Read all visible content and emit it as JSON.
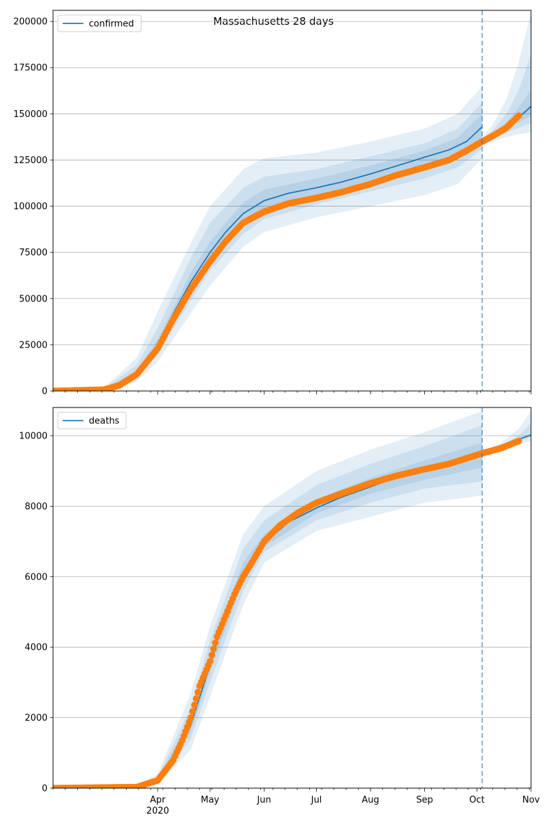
{
  "figure": {
    "title": "Massachusetts 28 days"
  },
  "chart_data": [
    {
      "type": "line",
      "panel": "top",
      "title": "Massachusetts 28 days",
      "legend": {
        "placement": "top-left",
        "label": "confirmed"
      },
      "ylim": [
        0,
        206000
      ],
      "yticks": [
        0,
        25000,
        50000,
        75000,
        100000,
        125000,
        150000,
        175000,
        200000
      ],
      "grid": "y",
      "vline_date": "2020-10-04",
      "series": [
        {
          "name": "confirmed",
          "kind": "model-line",
          "color": "#1f77b4",
          "x": [
            "2020-02-01",
            "2020-03-01",
            "2020-03-10",
            "2020-03-20",
            "2020-04-01",
            "2020-04-10",
            "2020-04-20",
            "2020-05-01",
            "2020-05-10",
            "2020-05-20",
            "2020-06-01",
            "2020-06-15",
            "2020-07-01",
            "2020-07-15",
            "2020-08-01",
            "2020-08-15",
            "2020-09-01",
            "2020-09-15",
            "2020-09-25",
            "2020-10-04"
          ],
          "y": [
            0,
            800,
            3500,
            9500,
            25000,
            42000,
            59000,
            75000,
            86000,
            96000,
            103000,
            107000,
            110000,
            113000,
            117500,
            121500,
            126500,
            130500,
            135000,
            143000
          ]
        },
        {
          "name": "forecast",
          "kind": "forecast-line",
          "color": "#1f77b4",
          "x": [
            "2020-10-04",
            "2020-10-10",
            "2020-10-18",
            "2020-10-25",
            "2020-11-01"
          ],
          "y": [
            135000,
            138500,
            142500,
            148000,
            154000
          ]
        },
        {
          "name": "observed",
          "kind": "points",
          "color": "#ff7f0e",
          "x": [
            "2020-02-01",
            "2020-03-01",
            "2020-03-10",
            "2020-03-20",
            "2020-04-01",
            "2020-04-10",
            "2020-04-20",
            "2020-05-01",
            "2020-05-10",
            "2020-05-20",
            "2020-06-01",
            "2020-06-15",
            "2020-07-01",
            "2020-07-15",
            "2020-08-01",
            "2020-08-15",
            "2020-09-01",
            "2020-09-15",
            "2020-09-25",
            "2020-10-04",
            "2020-10-10",
            "2020-10-18",
            "2020-10-25"
          ],
          "y": [
            0,
            700,
            3000,
            9000,
            23000,
            39000,
            55000,
            70000,
            81000,
            91000,
            97000,
            101500,
            104500,
            107500,
            112000,
            116500,
            121000,
            125000,
            130000,
            135000,
            138000,
            142500,
            149000
          ]
        }
      ],
      "bands": [
        {
          "opacity": 0.12,
          "x": [
            "2020-03-01",
            "2020-03-20",
            "2020-04-01",
            "2020-04-20",
            "2020-05-01",
            "2020-05-20",
            "2020-06-01",
            "2020-07-01",
            "2020-08-01",
            "2020-09-01",
            "2020-09-20",
            "2020-10-04"
          ],
          "lower": [
            300,
            5000,
            16000,
            42000,
            57000,
            78000,
            86000,
            94000,
            100000,
            106000,
            112000,
            126000
          ],
          "upper": [
            1500,
            18000,
            43000,
            80000,
            100000,
            120000,
            126000,
            129000,
            135000,
            142000,
            150000,
            165000
          ]
        },
        {
          "opacity": 0.12,
          "x": [
            "2020-03-01",
            "2020-03-20",
            "2020-04-01",
            "2020-04-20",
            "2020-05-01",
            "2020-05-20",
            "2020-06-01",
            "2020-07-01",
            "2020-08-01",
            "2020-09-01",
            "2020-09-20",
            "2020-10-04"
          ],
          "lower": [
            500,
            7000,
            20000,
            49000,
            65000,
            85000,
            93000,
            101000,
            108000,
            115000,
            121000,
            131000
          ],
          "upper": [
            1200,
            14000,
            34000,
            72000,
            91000,
            110000,
            116000,
            120000,
            127000,
            134000,
            142000,
            156000
          ]
        },
        {
          "opacity": 0.12,
          "x": [
            "2020-03-01",
            "2020-03-20",
            "2020-04-01",
            "2020-04-20",
            "2020-05-01",
            "2020-05-20",
            "2020-06-01",
            "2020-07-01",
            "2020-08-01",
            "2020-09-01",
            "2020-09-20",
            "2020-10-04"
          ],
          "lower": [
            650,
            8500,
            22500,
            54000,
            70000,
            90000,
            98000,
            106000,
            113000,
            120000,
            127000,
            137000
          ],
          "upper": [
            950,
            11000,
            28000,
            64000,
            81000,
            102000,
            109000,
            115000,
            122000,
            130000,
            137000,
            150000
          ]
        },
        {
          "opacity": 0.12,
          "x": [
            "2020-10-04",
            "2020-10-10",
            "2020-10-18",
            "2020-10-25",
            "2020-11-01"
          ],
          "lower": [
            133000,
            135000,
            137500,
            139000,
            140000
          ],
          "upper": [
            137000,
            144000,
            158000,
            178000,
            205000
          ]
        },
        {
          "opacity": 0.12,
          "x": [
            "2020-10-04",
            "2020-10-10",
            "2020-10-18",
            "2020-10-25",
            "2020-11-01"
          ],
          "lower": [
            134000,
            136500,
            140000,
            142500,
            145000
          ],
          "upper": [
            136000,
            141000,
            150000,
            163000,
            182000
          ]
        },
        {
          "opacity": 0.12,
          "x": [
            "2020-10-04",
            "2020-10-10",
            "2020-10-18",
            "2020-10-25",
            "2020-11-01"
          ],
          "lower": [
            134500,
            137500,
            141500,
            145500,
            149000
          ],
          "upper": [
            135500,
            139500,
            145500,
            153500,
            163000
          ]
        }
      ]
    },
    {
      "type": "line",
      "panel": "bottom",
      "legend": {
        "placement": "top-left",
        "label": "deaths"
      },
      "ylim": [
        0,
        10800
      ],
      "yticks": [
        0,
        2000,
        4000,
        6000,
        8000,
        10000
      ],
      "grid": "y",
      "vline_date": "2020-10-04",
      "series": [
        {
          "name": "deaths",
          "kind": "model-line",
          "color": "#1f77b4",
          "x": [
            "2020-02-01",
            "2020-03-20",
            "2020-04-01",
            "2020-04-10",
            "2020-04-20",
            "2020-05-01",
            "2020-05-10",
            "2020-05-20",
            "2020-06-01",
            "2020-06-15",
            "2020-07-01",
            "2020-07-15",
            "2020-08-01",
            "2020-08-15",
            "2020-09-01",
            "2020-09-15",
            "2020-10-04"
          ],
          "y": [
            0,
            40,
            200,
            700,
            1800,
            3500,
            5000,
            6100,
            6950,
            7550,
            7950,
            8250,
            8550,
            8800,
            9000,
            9200,
            9450
          ]
        },
        {
          "name": "forecast",
          "kind": "forecast-line",
          "color": "#1f77b4",
          "x": [
            "2020-10-04",
            "2020-10-10",
            "2020-10-18",
            "2020-10-25",
            "2020-11-01"
          ],
          "y": [
            9450,
            9580,
            9750,
            9900,
            10020
          ]
        },
        {
          "name": "observed",
          "kind": "points",
          "color": "#ff7f0e",
          "x": [
            "2020-02-01",
            "2020-03-20",
            "2020-04-01",
            "2020-04-10",
            "2020-04-15",
            "2020-04-20",
            "2020-04-25",
            "2020-05-01",
            "2020-05-05",
            "2020-05-10",
            "2020-05-15",
            "2020-05-20",
            "2020-05-25",
            "2020-06-01",
            "2020-06-10",
            "2020-06-20",
            "2020-07-01",
            "2020-07-15",
            "2020-08-01",
            "2020-08-15",
            "2020-09-01",
            "2020-09-15",
            "2020-10-04",
            "2020-10-15",
            "2020-10-25"
          ],
          "y": [
            0,
            30,
            220,
            800,
            1350,
            2000,
            2900,
            3600,
            4300,
            4900,
            5500,
            6000,
            6400,
            7000,
            7450,
            7800,
            8100,
            8350,
            8650,
            8850,
            9050,
            9200,
            9500,
            9650,
            9850
          ]
        }
      ],
      "bands": [
        {
          "opacity": 0.12,
          "x": [
            "2020-03-20",
            "2020-04-01",
            "2020-04-20",
            "2020-05-01",
            "2020-05-20",
            "2020-06-01",
            "2020-07-01",
            "2020-08-01",
            "2020-09-01",
            "2020-10-04"
          ],
          "lower": [
            20,
            100,
            1100,
            2600,
            5200,
            6400,
            7300,
            7700,
            8100,
            8300
          ],
          "upper": [
            80,
            400,
            2700,
            4600,
            7200,
            8000,
            9000,
            9600,
            10100,
            10700
          ]
        },
        {
          "opacity": 0.12,
          "x": [
            "2020-03-20",
            "2020-04-01",
            "2020-04-20",
            "2020-05-01",
            "2020-05-20",
            "2020-06-01",
            "2020-07-01",
            "2020-08-01",
            "2020-09-01",
            "2020-10-04"
          ],
          "lower": [
            28,
            140,
            1400,
            3000,
            5600,
            6700,
            7600,
            8100,
            8500,
            8700
          ],
          "upper": [
            60,
            300,
            2300,
            4200,
            6800,
            7600,
            8600,
            9200,
            9700,
            10300
          ]
        },
        {
          "opacity": 0.12,
          "x": [
            "2020-03-20",
            "2020-04-01",
            "2020-04-20",
            "2020-05-01",
            "2020-05-20",
            "2020-06-01",
            "2020-07-01",
            "2020-08-01",
            "2020-09-01",
            "2020-10-04"
          ],
          "lower": [
            35,
            170,
            1600,
            3300,
            5900,
            6850,
            7800,
            8350,
            8750,
            9100
          ],
          "upper": [
            50,
            240,
            2000,
            3800,
            6400,
            7200,
            8200,
            8800,
            9300,
            9800
          ]
        },
        {
          "opacity": 0.12,
          "x": [
            "2020-10-04",
            "2020-10-15",
            "2020-10-25",
            "2020-11-01"
          ],
          "lower": [
            9450,
            9600,
            9750,
            9850
          ],
          "upper": [
            9500,
            9800,
            10200,
            10700
          ]
        },
        {
          "opacity": 0.12,
          "x": [
            "2020-10-04",
            "2020-10-15",
            "2020-10-25",
            "2020-11-01"
          ],
          "lower": [
            9450,
            9650,
            9820,
            9950
          ],
          "upper": [
            9480,
            9720,
            10000,
            10350
          ]
        }
      ]
    }
  ],
  "xaxis": {
    "range": [
      "2020-02-01",
      "2020-11-01"
    ],
    "major_ticks": [
      {
        "date": "2020-04-01",
        "label": "Apr"
      },
      {
        "date": "2020-05-01",
        "label": "May"
      },
      {
        "date": "2020-06-01",
        "label": "Jun"
      },
      {
        "date": "2020-07-01",
        "label": "Jul"
      },
      {
        "date": "2020-08-01",
        "label": "Aug"
      },
      {
        "date": "2020-09-01",
        "label": "Sep"
      },
      {
        "date": "2020-10-01",
        "label": "Oct"
      },
      {
        "date": "2020-11-01",
        "label": "Nov"
      }
    ],
    "year_label": "2020"
  },
  "colors": {
    "model": "#1f77b4",
    "observed": "#ff7f0e",
    "band": "#1f77b4",
    "vline": "#1f77b4",
    "grid": "#b0b0b0"
  }
}
